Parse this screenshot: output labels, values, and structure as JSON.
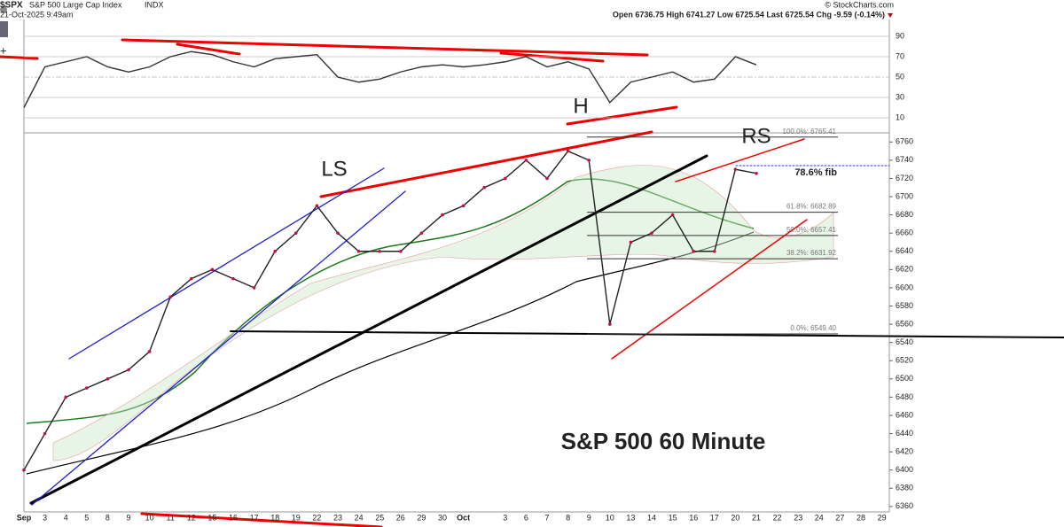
{
  "chart_data": {
    "type": "line",
    "header": {
      "symbol": "$SPX",
      "name": "S&P 500 Large Cap Index",
      "exchange": "INDX",
      "date": "21-Oct-2025 9:49am",
      "source": "© StockCharts.com",
      "quote": "Open 6736.75  High 6741.27  Low 6725.54  Last 6725.54  Chg -9.59 (-0.14%)"
    },
    "title": "S&P 500 60 Minute",
    "annotations": {
      "ls": "LS",
      "h": "H",
      "rs": "RS",
      "fib": "78.6% fib"
    },
    "categories": [
      "Sep",
      "3",
      "4",
      "5",
      "8",
      "9",
      "10",
      "11",
      "12",
      "15",
      "16",
      "17",
      "18",
      "19",
      "22",
      "23",
      "24",
      "25",
      "26",
      "29",
      "30",
      "Oct",
      null,
      "3",
      "6",
      "7",
      "8",
      "9",
      "10",
      "13",
      "14",
      "15",
      "16",
      "17",
      "20",
      "21",
      "22",
      "23",
      "24",
      "27",
      "28",
      "29"
    ],
    "series": [
      {
        "name": "$SPX",
        "color": "#222222",
        "values": [
          6400,
          6440,
          6480,
          6490,
          6500,
          6510,
          6530,
          6590,
          6610,
          6620,
          6610,
          6600,
          6640,
          6660,
          6690,
          6660,
          6640,
          6640,
          6640,
          6660,
          6680,
          6690,
          6710,
          6720,
          6740,
          6720,
          6750,
          6740,
          6560,
          6650,
          6660,
          6680,
          6640,
          6640,
          6730,
          6725.54,
          null,
          null,
          null,
          null,
          null,
          null
        ]
      }
    ],
    "ylim": [
      6355,
      6770
    ],
    "yticks": [
      6360,
      6380,
      6400,
      6420,
      6440,
      6460,
      6480,
      6500,
      6520,
      6540,
      6560,
      6580,
      6600,
      6620,
      6640,
      6660,
      6680,
      6700,
      6720,
      6740,
      6760
    ],
    "fib": [
      {
        "value": 6765.41,
        "label": "100.0%: 6765.41"
      },
      {
        "value": 6682.89,
        "label": "61.8%: 6682.89"
      },
      {
        "value": 6657.41,
        "label": "50.0%: 6657.41"
      },
      {
        "value": 6631.92,
        "label": "38.2%: 6631.92"
      },
      {
        "value": 6549.4,
        "label": "0.0%: 6549.40"
      }
    ],
    "rsi": {
      "color": "#333333",
      "values": [
        20,
        60,
        65,
        70,
        60,
        55,
        60,
        70,
        75,
        72,
        65,
        60,
        68,
        70,
        72,
        50,
        45,
        48,
        55,
        60,
        62,
        60,
        62,
        65,
        70,
        60,
        65,
        58,
        25,
        45,
        50,
        55,
        45,
        48,
        70,
        62,
        null,
        null,
        null,
        null,
        null,
        null
      ],
      "ylim": [
        0,
        100
      ],
      "yticks": [
        10,
        30,
        50,
        70,
        90
      ]
    },
    "grid": false
  }
}
